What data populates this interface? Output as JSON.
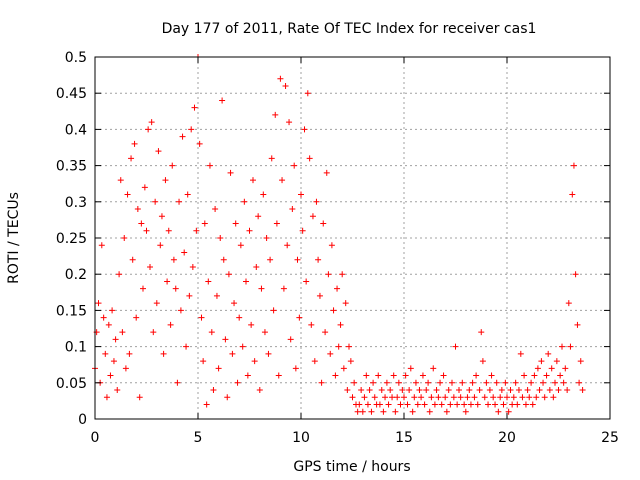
{
  "chart_data": {
    "type": "scatter",
    "title": "Day 177 of 2011, Rate Of TEC Index for receiver cas1",
    "xlabel": "GPS time / hours",
    "ylabel": "ROTI / TECUs",
    "xlim": [
      0,
      25
    ],
    "ylim": [
      0,
      0.5
    ],
    "xticks": [
      "0",
      "5",
      "10",
      "15",
      "20",
      "25"
    ],
    "yticks": [
      "0",
      "0.05",
      "0.1",
      "0.15",
      "0.2",
      "0.25",
      "0.3",
      "0.35",
      "0.4",
      "0.45",
      "0.5"
    ],
    "grid": true,
    "marker": "+",
    "colors": {
      "series": "#ff0000",
      "axes": "#000000",
      "grid": "#a0a0a0"
    },
    "series": [
      {
        "points": [
          [
            0.0,
            0.07
          ],
          [
            0.08,
            0.12
          ],
          [
            0.17,
            0.16
          ],
          [
            0.25,
            0.05
          ],
          [
            0.33,
            0.24
          ],
          [
            0.42,
            0.14
          ],
          [
            0.5,
            0.09
          ],
          [
            0.58,
            0.03
          ],
          [
            0.67,
            0.13
          ],
          [
            0.75,
            0.06
          ],
          [
            0.83,
            0.15
          ],
          [
            0.92,
            0.08
          ],
          [
            1.0,
            0.11
          ],
          [
            1.08,
            0.04
          ],
          [
            1.17,
            0.2
          ],
          [
            1.25,
            0.33
          ],
          [
            1.33,
            0.12
          ],
          [
            1.42,
            0.25
          ],
          [
            1.5,
            0.07
          ],
          [
            1.58,
            0.31
          ],
          [
            1.67,
            0.09
          ],
          [
            1.75,
            0.36
          ],
          [
            1.83,
            0.22
          ],
          [
            1.92,
            0.38
          ],
          [
            2.0,
            0.14
          ],
          [
            2.08,
            0.29
          ],
          [
            2.17,
            0.03
          ],
          [
            2.25,
            0.27
          ],
          [
            2.33,
            0.18
          ],
          [
            2.42,
            0.32
          ],
          [
            2.5,
            0.26
          ],
          [
            2.58,
            0.4
          ],
          [
            2.67,
            0.21
          ],
          [
            2.75,
            0.41
          ],
          [
            2.83,
            0.12
          ],
          [
            2.92,
            0.3
          ],
          [
            3.0,
            0.16
          ],
          [
            3.08,
            0.37
          ],
          [
            3.17,
            0.24
          ],
          [
            3.25,
            0.28
          ],
          [
            3.33,
            0.09
          ],
          [
            3.42,
            0.33
          ],
          [
            3.5,
            0.19
          ],
          [
            3.58,
            0.26
          ],
          [
            3.67,
            0.13
          ],
          [
            3.75,
            0.35
          ],
          [
            3.83,
            0.22
          ],
          [
            3.92,
            0.18
          ],
          [
            4.0,
            0.05
          ],
          [
            4.08,
            0.3
          ],
          [
            4.17,
            0.15
          ],
          [
            4.25,
            0.39
          ],
          [
            4.33,
            0.23
          ],
          [
            4.42,
            0.1
          ],
          [
            4.5,
            0.31
          ],
          [
            4.58,
            0.17
          ],
          [
            4.67,
            0.4
          ],
          [
            4.75,
            0.21
          ],
          [
            4.83,
            0.43
          ],
          [
            4.92,
            0.26
          ],
          [
            5.0,
            0.5
          ],
          [
            5.08,
            0.38
          ],
          [
            5.17,
            0.14
          ],
          [
            5.25,
            0.08
          ],
          [
            5.33,
            0.27
          ],
          [
            5.42,
            0.02
          ],
          [
            5.5,
            0.19
          ],
          [
            5.58,
            0.35
          ],
          [
            5.67,
            0.12
          ],
          [
            5.75,
            0.04
          ],
          [
            5.83,
            0.29
          ],
          [
            5.92,
            0.17
          ],
          [
            6.0,
            0.07
          ],
          [
            6.08,
            0.25
          ],
          [
            6.17,
            0.44
          ],
          [
            6.25,
            0.22
          ],
          [
            6.33,
            0.11
          ],
          [
            6.42,
            0.03
          ],
          [
            6.5,
            0.2
          ],
          [
            6.58,
            0.34
          ],
          [
            6.67,
            0.09
          ],
          [
            6.75,
            0.16
          ],
          [
            6.83,
            0.27
          ],
          [
            6.92,
            0.05
          ],
          [
            7.0,
            0.14
          ],
          [
            7.08,
            0.24
          ],
          [
            7.17,
            0.1
          ],
          [
            7.25,
            0.3
          ],
          [
            7.33,
            0.19
          ],
          [
            7.42,
            0.06
          ],
          [
            7.5,
            0.26
          ],
          [
            7.58,
            0.13
          ],
          [
            7.67,
            0.33
          ],
          [
            7.75,
            0.08
          ],
          [
            7.83,
            0.21
          ],
          [
            7.92,
            0.28
          ],
          [
            8.0,
            0.04
          ],
          [
            8.08,
            0.18
          ],
          [
            8.17,
            0.31
          ],
          [
            8.25,
            0.12
          ],
          [
            8.33,
            0.25
          ],
          [
            8.42,
            0.09
          ],
          [
            8.5,
            0.22
          ],
          [
            8.58,
            0.36
          ],
          [
            8.67,
            0.15
          ],
          [
            8.75,
            0.42
          ],
          [
            8.83,
            0.27
          ],
          [
            8.92,
            0.06
          ],
          [
            9.0,
            0.47
          ],
          [
            9.08,
            0.33
          ],
          [
            9.17,
            0.18
          ],
          [
            9.25,
            0.46
          ],
          [
            9.33,
            0.24
          ],
          [
            9.42,
            0.41
          ],
          [
            9.5,
            0.11
          ],
          [
            9.58,
            0.29
          ],
          [
            9.67,
            0.35
          ],
          [
            9.75,
            0.07
          ],
          [
            9.83,
            0.22
          ],
          [
            9.92,
            0.14
          ],
          [
            10.0,
            0.31
          ],
          [
            10.08,
            0.26
          ],
          [
            10.17,
            0.4
          ],
          [
            10.25,
            0.19
          ],
          [
            10.33,
            0.45
          ],
          [
            10.42,
            0.36
          ],
          [
            10.5,
            0.13
          ],
          [
            10.58,
            0.28
          ],
          [
            10.67,
            0.08
          ],
          [
            10.75,
            0.3
          ],
          [
            10.83,
            0.22
          ],
          [
            10.92,
            0.17
          ],
          [
            11.0,
            0.05
          ],
          [
            11.08,
            0.27
          ],
          [
            11.17,
            0.12
          ],
          [
            11.25,
            0.34
          ],
          [
            11.33,
            0.2
          ],
          [
            11.42,
            0.09
          ],
          [
            11.5,
            0.24
          ],
          [
            11.58,
            0.15
          ],
          [
            11.67,
            0.06
          ],
          [
            11.75,
            0.18
          ],
          [
            11.83,
            0.1
          ],
          [
            11.92,
            0.13
          ],
          [
            12.0,
            0.2
          ],
          [
            12.08,
            0.07
          ],
          [
            12.17,
            0.16
          ],
          [
            12.25,
            0.04
          ],
          [
            12.33,
            0.1
          ],
          [
            12.42,
            0.08
          ],
          [
            12.5,
            0.03
          ],
          [
            12.58,
            0.05
          ],
          [
            12.67,
            0.02
          ],
          [
            12.75,
            0.01
          ],
          [
            12.83,
            0.02
          ],
          [
            12.92,
            0.04
          ],
          [
            13.0,
            0.01
          ],
          [
            13.08,
            0.03
          ],
          [
            13.17,
            0.06
          ],
          [
            13.25,
            0.02
          ],
          [
            13.33,
            0.04
          ],
          [
            13.42,
            0.01
          ],
          [
            13.5,
            0.05
          ],
          [
            13.58,
            0.03
          ],
          [
            13.67,
            0.02
          ],
          [
            13.75,
            0.06
          ],
          [
            13.83,
            0.02
          ],
          [
            13.92,
            0.04
          ],
          [
            14.0,
            0.01
          ],
          [
            14.08,
            0.03
          ],
          [
            14.17,
            0.05
          ],
          [
            14.25,
            0.02
          ],
          [
            14.33,
            0.04
          ],
          [
            14.42,
            0.03
          ],
          [
            14.5,
            0.06
          ],
          [
            14.58,
            0.01
          ],
          [
            14.67,
            0.03
          ],
          [
            14.75,
            0.05
          ],
          [
            14.83,
            0.02
          ],
          [
            14.92,
            0.04
          ],
          [
            15.0,
            0.03
          ],
          [
            15.08,
            0.06
          ],
          [
            15.17,
            0.02
          ],
          [
            15.25,
            0.04
          ],
          [
            15.33,
            0.07
          ],
          [
            15.42,
            0.01
          ],
          [
            15.5,
            0.03
          ],
          [
            15.58,
            0.05
          ],
          [
            15.67,
            0.02
          ],
          [
            15.75,
            0.04
          ],
          [
            15.83,
            0.03
          ],
          [
            15.92,
            0.06
          ],
          [
            16.0,
            0.02
          ],
          [
            16.08,
            0.04
          ],
          [
            16.17,
            0.05
          ],
          [
            16.25,
            0.01
          ],
          [
            16.33,
            0.03
          ],
          [
            16.42,
            0.07
          ],
          [
            16.5,
            0.02
          ],
          [
            16.58,
            0.04
          ],
          [
            16.67,
            0.03
          ],
          [
            16.75,
            0.05
          ],
          [
            16.83,
            0.02
          ],
          [
            16.92,
            0.06
          ],
          [
            17.0,
            0.03
          ],
          [
            17.08,
            0.01
          ],
          [
            17.17,
            0.04
          ],
          [
            17.25,
            0.02
          ],
          [
            17.33,
            0.05
          ],
          [
            17.42,
            0.03
          ],
          [
            17.5,
            0.1
          ],
          [
            17.58,
            0.02
          ],
          [
            17.67,
            0.04
          ],
          [
            17.75,
            0.03
          ],
          [
            17.83,
            0.05
          ],
          [
            17.92,
            0.02
          ],
          [
            18.0,
            0.01
          ],
          [
            18.08,
            0.03
          ],
          [
            18.17,
            0.04
          ],
          [
            18.25,
            0.02
          ],
          [
            18.33,
            0.05
          ],
          [
            18.42,
            0.03
          ],
          [
            18.5,
            0.06
          ],
          [
            18.58,
            0.02
          ],
          [
            18.67,
            0.04
          ],
          [
            18.75,
            0.12
          ],
          [
            18.83,
            0.08
          ],
          [
            18.92,
            0.03
          ],
          [
            19.0,
            0.05
          ],
          [
            19.08,
            0.02
          ],
          [
            19.17,
            0.04
          ],
          [
            19.25,
            0.06
          ],
          [
            19.33,
            0.03
          ],
          [
            19.42,
            0.02
          ],
          [
            19.5,
            0.05
          ],
          [
            19.58,
            0.01
          ],
          [
            19.67,
            0.03
          ],
          [
            19.75,
            0.04
          ],
          [
            19.83,
            0.02
          ],
          [
            19.92,
            0.05
          ],
          [
            20.0,
            0.03
          ],
          [
            20.08,
            0.01
          ],
          [
            20.17,
            0.04
          ],
          [
            20.25,
            0.02
          ],
          [
            20.33,
            0.03
          ],
          [
            20.42,
            0.05
          ],
          [
            20.5,
            0.02
          ],
          [
            20.58,
            0.04
          ],
          [
            20.67,
            0.09
          ],
          [
            20.75,
            0.03
          ],
          [
            20.83,
            0.06
          ],
          [
            20.92,
            0.02
          ],
          [
            21.0,
            0.04
          ],
          [
            21.08,
            0.03
          ],
          [
            21.17,
            0.05
          ],
          [
            21.25,
            0.02
          ],
          [
            21.33,
            0.06
          ],
          [
            21.42,
            0.03
          ],
          [
            21.5,
            0.07
          ],
          [
            21.58,
            0.04
          ],
          [
            21.67,
            0.08
          ],
          [
            21.75,
            0.05
          ],
          [
            21.83,
            0.03
          ],
          [
            21.92,
            0.06
          ],
          [
            22.0,
            0.09
          ],
          [
            22.08,
            0.04
          ],
          [
            22.17,
            0.07
          ],
          [
            22.25,
            0.03
          ],
          [
            22.33,
            0.05
          ],
          [
            22.42,
            0.08
          ],
          [
            22.5,
            0.04
          ],
          [
            22.58,
            0.06
          ],
          [
            22.67,
            0.1
          ],
          [
            22.75,
            0.05
          ],
          [
            22.83,
            0.07
          ],
          [
            22.92,
            0.04
          ],
          [
            23.0,
            0.16
          ],
          [
            23.08,
            0.1
          ],
          [
            23.17,
            0.31
          ],
          [
            23.25,
            0.35
          ],
          [
            23.33,
            0.2
          ],
          [
            23.42,
            0.13
          ],
          [
            23.5,
            0.05
          ],
          [
            23.58,
            0.08
          ],
          [
            23.67,
            0.04
          ]
        ]
      }
    ]
  }
}
